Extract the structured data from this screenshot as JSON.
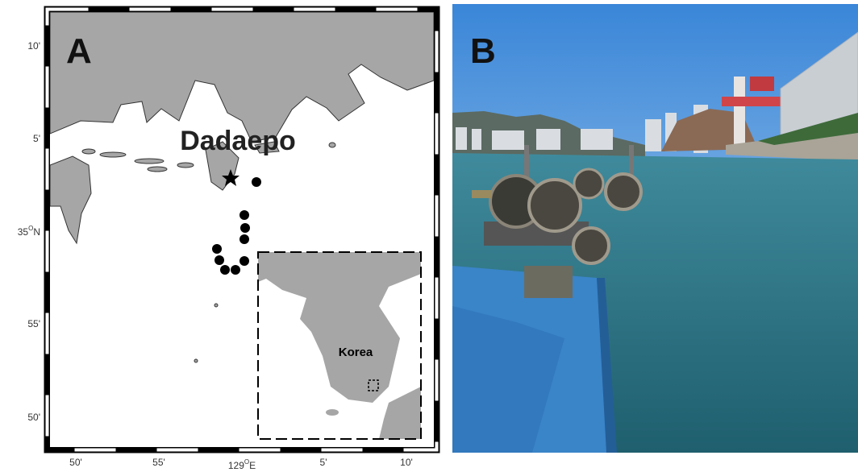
{
  "panel_a": {
    "label": "A",
    "place_label": "Dadaepo",
    "inset_label": "Korea",
    "lat_labels": [
      "10'",
      "5'",
      "35",
      "O",
      "N",
      "55'",
      "50'"
    ],
    "lon_labels": [
      "50'",
      "55'",
      "129",
      "O",
      "E",
      "5'",
      "10'"
    ]
  },
  "panel_b": {
    "label": "B"
  }
}
